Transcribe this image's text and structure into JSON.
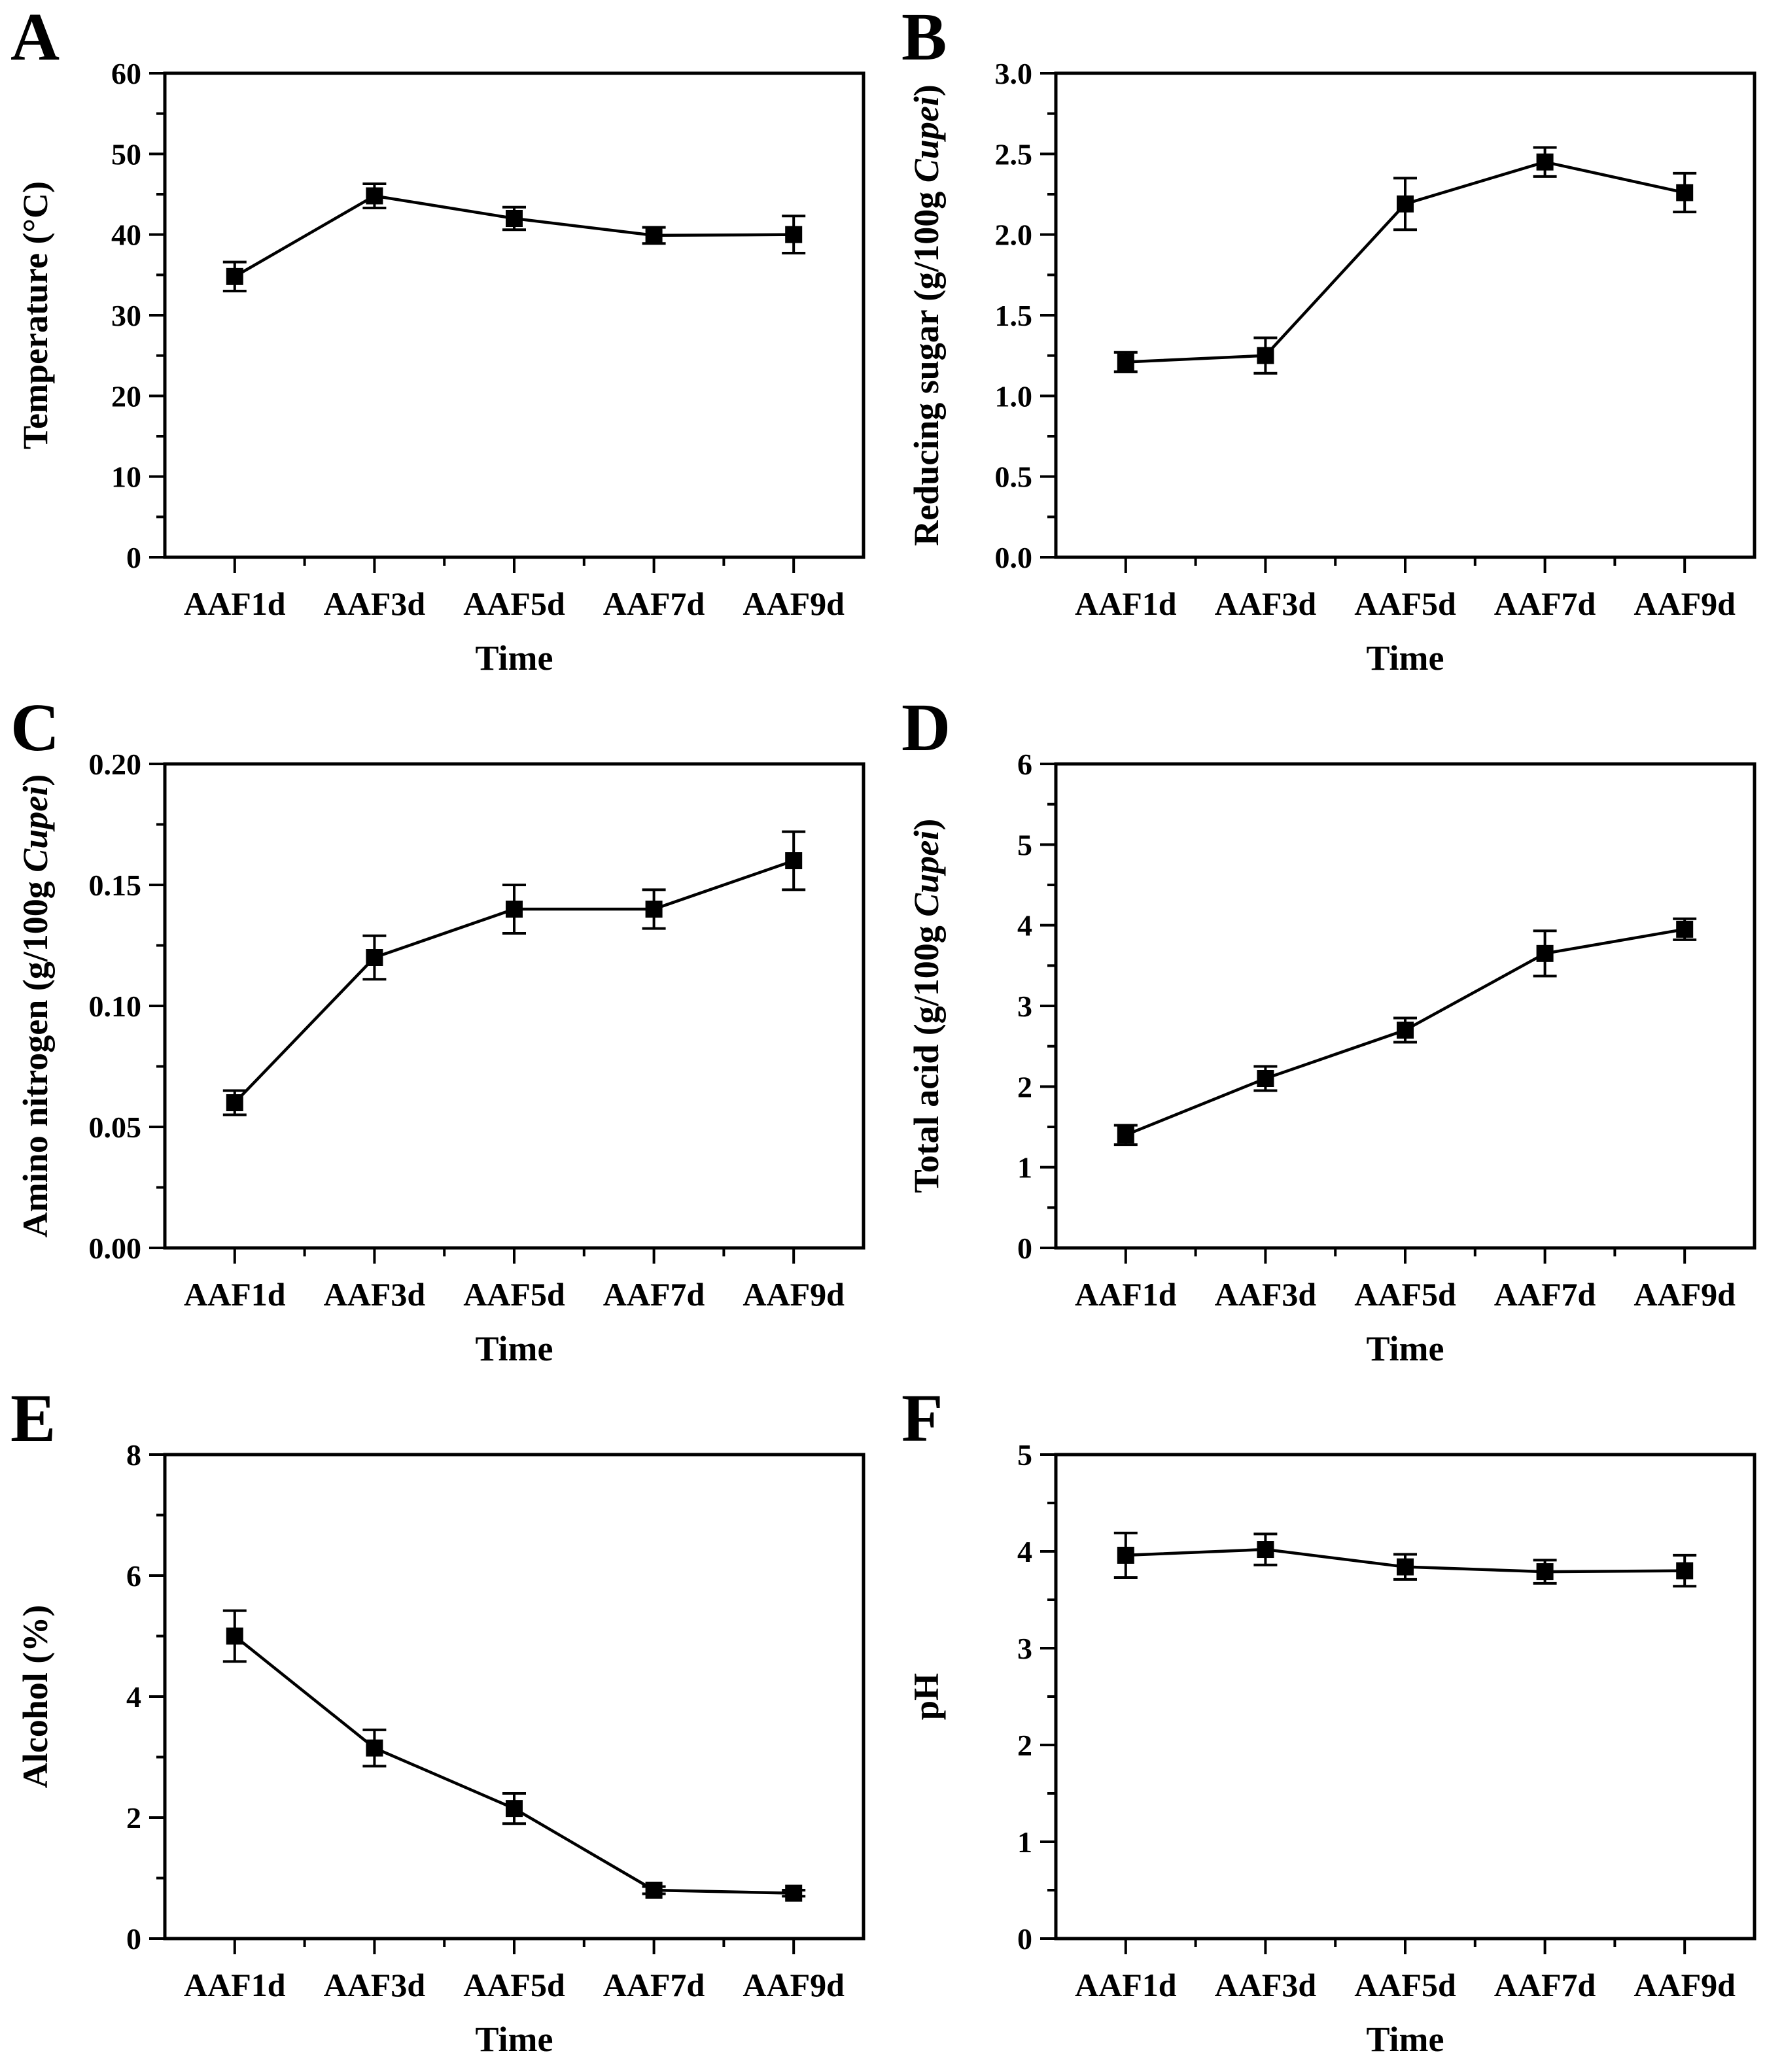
{
  "figure": {
    "background": "#ffffff",
    "ink": "#000000",
    "marker": "filled-square",
    "xlabel": "Time",
    "categories": [
      "AAF1d",
      "AAF3d",
      "AAF5d",
      "AAF7d",
      "AAF9d"
    ]
  },
  "chart_data": [
    {
      "type": "line",
      "letter": "A",
      "ylabel_prefix": "Temperature (°C)",
      "ylabel_italic": "",
      "ylabel_suffix": "",
      "xlabel": "Time",
      "categories": [
        "AAF1d",
        "AAF3d",
        "AAF5d",
        "AAF7d",
        "AAF9d"
      ],
      "values": [
        34.8,
        44.8,
        42.0,
        39.9,
        40.0
      ],
      "errors": [
        1.8,
        1.5,
        1.4,
        1.0,
        2.3
      ],
      "ylim": [
        0,
        60
      ],
      "ytick_step": 10,
      "yminor_step": 5,
      "ydecimals": 0,
      "legend_position": "none",
      "grid": false
    },
    {
      "type": "line",
      "letter": "B",
      "ylabel_prefix": "Reducing sugar (g/100g ",
      "ylabel_italic": "Cupei",
      "ylabel_suffix": ")",
      "xlabel": "Time",
      "categories": [
        "AAF1d",
        "AAF3d",
        "AAF5d",
        "AAF7d",
        "AAF9d"
      ],
      "values": [
        1.21,
        1.25,
        2.19,
        2.45,
        2.26
      ],
      "errors": [
        0.06,
        0.11,
        0.16,
        0.09,
        0.12
      ],
      "ylim": [
        0.0,
        3.0
      ],
      "ytick_step": 0.5,
      "yminor_step": 0.25,
      "ydecimals": 1,
      "legend_position": "none",
      "grid": false
    },
    {
      "type": "line",
      "letter": "C",
      "ylabel_prefix": "Amino nitrogen (g/100g ",
      "ylabel_italic": "Cupei",
      "ylabel_suffix": ")",
      "xlabel": "Time",
      "categories": [
        "AAF1d",
        "AAF3d",
        "AAF5d",
        "AAF7d",
        "AAF9d"
      ],
      "values": [
        0.06,
        0.12,
        0.14,
        0.14,
        0.16
      ],
      "errors": [
        0.005,
        0.009,
        0.01,
        0.008,
        0.012
      ],
      "ylim": [
        0.0,
        0.2
      ],
      "ytick_step": 0.05,
      "yminor_step": 0.025,
      "ydecimals": 2,
      "legend_position": "none",
      "grid": false
    },
    {
      "type": "line",
      "letter": "D",
      "ylabel_prefix": "Total acid (g/100g ",
      "ylabel_italic": "Cupei",
      "ylabel_suffix": ")",
      "xlabel": "Time",
      "categories": [
        "AAF1d",
        "AAF3d",
        "AAF5d",
        "AAF7d",
        "AAF9d"
      ],
      "values": [
        1.4,
        2.1,
        2.7,
        3.65,
        3.95
      ],
      "errors": [
        0.12,
        0.15,
        0.15,
        0.28,
        0.13
      ],
      "ylim": [
        0,
        6
      ],
      "ytick_step": 1,
      "yminor_step": 0.5,
      "ydecimals": 0,
      "legend_position": "none",
      "grid": false
    },
    {
      "type": "line",
      "letter": "E",
      "ylabel_prefix": "Alcohol (%)",
      "ylabel_italic": "",
      "ylabel_suffix": "",
      "xlabel": "Time",
      "categories": [
        "AAF1d",
        "AAF3d",
        "AAF5d",
        "AAF7d",
        "AAF9d"
      ],
      "values": [
        5.0,
        3.15,
        2.15,
        0.8,
        0.75
      ],
      "errors": [
        0.42,
        0.3,
        0.25,
        0.06,
        0.05
      ],
      "ylim": [
        0,
        8
      ],
      "ytick_step": 2,
      "yminor_step": 1,
      "ydecimals": 0,
      "legend_position": "none",
      "grid": false
    },
    {
      "type": "line",
      "letter": "F",
      "ylabel_prefix": "pH",
      "ylabel_italic": "",
      "ylabel_suffix": "",
      "xlabel": "Time",
      "categories": [
        "AAF1d",
        "AAF3d",
        "AAF5d",
        "AAF7d",
        "AAF9d"
      ],
      "values": [
        3.96,
        4.02,
        3.84,
        3.79,
        3.8
      ],
      "errors": [
        0.23,
        0.16,
        0.13,
        0.12,
        0.16
      ],
      "ylim": [
        0,
        5
      ],
      "ytick_step": 1,
      "yminor_step": 0.5,
      "ydecimals": 0,
      "legend_position": "none",
      "grid": false
    }
  ]
}
